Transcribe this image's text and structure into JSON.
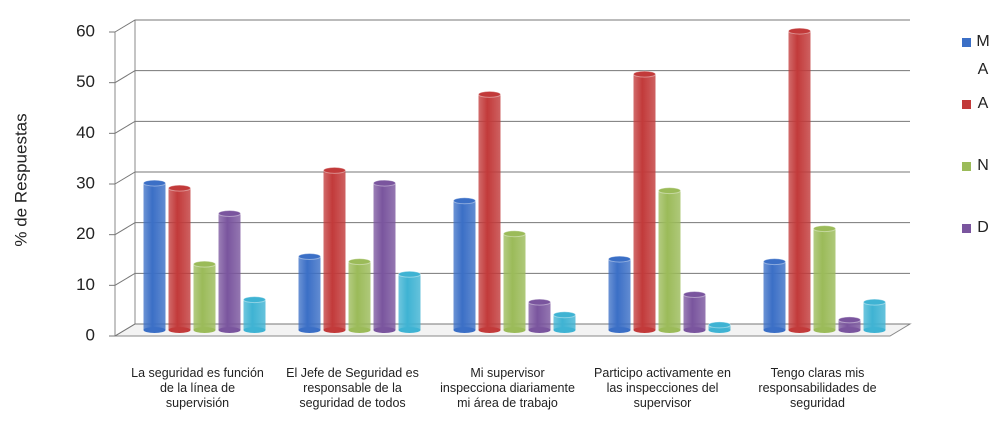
{
  "chart_data": {
    "type": "bar",
    "y_label": "% de Respuestas",
    "categories": [
      "La seguridad es función de la línea de supervisión",
      "El Jefe de Seguridad es responsable de la seguridad de todos",
      "Mi supervisor inspecciona diariamente mi área de trabajo",
      "Participo activamente en las inspecciones del supervisor",
      "Tengo claras mis responsabilidades de seguridad"
    ],
    "series": [
      {
        "name": "MA",
        "color": "#3b6fc6",
        "values": [
          29,
          14.5,
          25.5,
          14,
          13.5
        ]
      },
      {
        "name": "A",
        "color": "#c23a3a",
        "values": [
          28,
          31.5,
          46.5,
          50.5,
          59
        ]
      },
      {
        "name": "N",
        "color": "#9bbb59",
        "values": [
          13,
          13.5,
          19,
          27.5,
          20
        ]
      },
      {
        "name": "D",
        "color": "#7a559e",
        "values": [
          23,
          29,
          5.5,
          7,
          2
        ]
      },
      {
        "color": "#3fb3d3",
        "values": [
          6,
          11,
          3,
          1,
          5.5
        ]
      }
    ],
    "ylim": [
      0,
      60
    ],
    "yticks": [
      0,
      10,
      20,
      30,
      40,
      50,
      60
    ],
    "grid": true
  }
}
